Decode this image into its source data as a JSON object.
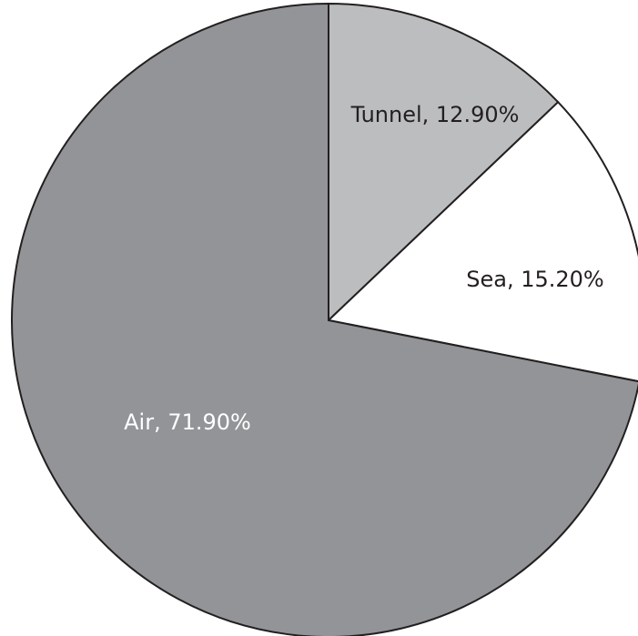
{
  "chart_data": {
    "type": "pie",
    "title": "",
    "slices": [
      {
        "label": "Tunnel, 12.90%",
        "category": "Tunnel",
        "value": 12.9,
        "color": "#bcbdbf",
        "label_color": "#231f20"
      },
      {
        "label": "Sea, 15.20%",
        "category": "Sea",
        "value": 15.2,
        "color": "#ffffff",
        "label_color": "#231f20"
      },
      {
        "label": "Air, 71.90%",
        "category": "Air",
        "value": 71.9,
        "color": "#929497",
        "label_color": "#ffffff"
      }
    ],
    "start_angle": "12 o'clock",
    "direction": "clockwise",
    "stroke_color": "#231f20",
    "legend": "none"
  }
}
